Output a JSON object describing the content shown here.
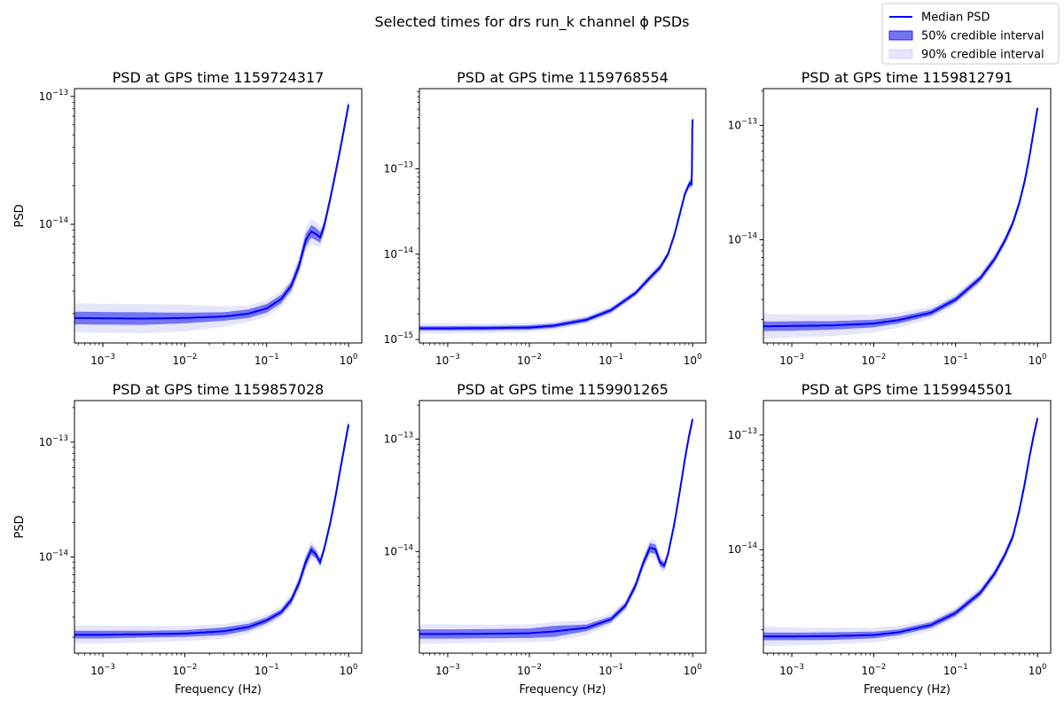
{
  "figure": {
    "suptitle": "Selected times for drs run_k channel ϕ PSDs",
    "legend": {
      "placement": "upper-right",
      "entries": [
        {
          "label": "Median PSD",
          "kind": "line",
          "color": "#0000ff"
        },
        {
          "label": "50% credible interval",
          "kind": "patch",
          "color": "#7575f3"
        },
        {
          "label": "90% credible interval",
          "kind": "patch",
          "color": "#e5e5fc"
        }
      ]
    },
    "colors": {
      "median": "#0000ff",
      "band50": "#7575f3",
      "band90": "#e5e5fc"
    }
  },
  "chart_data": [
    {
      "type": "line",
      "title": "PSD at GPS time 1159724317",
      "xlabel": "",
      "ylabel": "PSD",
      "xscale": "log",
      "yscale": "log",
      "xlim": [
        0.00045,
        1.45
      ],
      "ylim": [
        1.18e-15,
        1.15e-13
      ],
      "x_ticks": [
        {
          "v": 0.001,
          "e": "−3"
        },
        {
          "v": 0.01,
          "e": "−2"
        },
        {
          "v": 0.1,
          "e": "−1"
        },
        {
          "v": 1,
          "e": "0"
        }
      ],
      "y_ticks": [
        {
          "v": 1e-14,
          "e": "−14"
        },
        {
          "v": 1e-13,
          "e": "−13"
        }
      ],
      "x": [
        0.00045,
        0.001,
        0.003,
        0.01,
        0.03,
        0.06,
        0.1,
        0.15,
        0.2,
        0.25,
        0.3,
        0.35,
        0.4,
        0.45,
        0.5,
        0.6,
        0.7,
        0.8,
        0.9,
        1.0
      ],
      "median": [
        1.85e-15,
        1.84e-15,
        1.83e-15,
        1.85e-15,
        1.9e-15,
        2e-15,
        2.2e-15,
        2.6e-15,
        3.3e-15,
        4.8e-15,
        7.5e-15,
        8.8e-15,
        8.4e-15,
        7.9e-15,
        9.5e-15,
        1.6e-14,
        2.6e-14,
        4e-14,
        6e-14,
        8.6e-14
      ],
      "band50": [
        1.12,
        1.12,
        1.12,
        1.1,
        1.08,
        1.08,
        1.08,
        1.08,
        1.08,
        1.1,
        1.12,
        1.12,
        1.12,
        1.1,
        1.08,
        1.06,
        1.06,
        1.06,
        1.06,
        1.06
      ],
      "band90": [
        1.3,
        1.3,
        1.3,
        1.27,
        1.2,
        1.16,
        1.16,
        1.16,
        1.16,
        1.2,
        1.25,
        1.25,
        1.25,
        1.2,
        1.16,
        1.12,
        1.12,
        1.12,
        1.12,
        1.12
      ]
    },
    {
      "type": "line",
      "title": "PSD at GPS time 1159768554",
      "xlabel": "",
      "ylabel": "",
      "xscale": "log",
      "yscale": "log",
      "xlim": [
        0.00045,
        1.45
      ],
      "ylim": [
        9.1e-16,
        8.7e-13
      ],
      "x_ticks": [
        {
          "v": 0.001,
          "e": "−3"
        },
        {
          "v": 0.01,
          "e": "−2"
        },
        {
          "v": 0.1,
          "e": "−1"
        },
        {
          "v": 1,
          "e": "0"
        }
      ],
      "y_ticks": [
        {
          "v": 1e-15,
          "e": "−15"
        },
        {
          "v": 1e-14,
          "e": "−14"
        },
        {
          "v": 1e-13,
          "e": "−13"
        }
      ],
      "x": [
        0.00045,
        0.001,
        0.003,
        0.01,
        0.02,
        0.05,
        0.1,
        0.2,
        0.3,
        0.4,
        0.5,
        0.6,
        0.7,
        0.8,
        0.9,
        0.95,
        0.97,
        0.98,
        0.99,
        1.0
      ],
      "median": [
        1.35e-15,
        1.35e-15,
        1.36e-15,
        1.38e-15,
        1.45e-15,
        1.7e-15,
        2.2e-15,
        3.5e-15,
        5.3e-15,
        7e-15,
        1e-14,
        1.7e-14,
        3e-14,
        5e-14,
        6.5e-14,
        6.9e-14,
        6.6e-14,
        9e-14,
        2.8e-13,
        3.8e-13
      ],
      "band50": [
        1.06,
        1.06,
        1.06,
        1.06,
        1.06,
        1.06,
        1.06,
        1.06,
        1.07,
        1.07,
        1.06,
        1.06,
        1.06,
        1.06,
        1.08,
        1.1,
        1.1,
        1.12,
        1.15,
        1.15
      ],
      "band90": [
        1.15,
        1.15,
        1.14,
        1.13,
        1.12,
        1.12,
        1.12,
        1.12,
        1.14,
        1.14,
        1.12,
        1.12,
        1.12,
        1.12,
        1.15,
        1.2,
        1.2,
        1.25,
        1.35,
        1.35
      ]
    },
    {
      "type": "line",
      "title": "PSD at GPS time 1159812791",
      "xlabel": "",
      "ylabel": "",
      "xscale": "log",
      "yscale": "log",
      "xlim": [
        0.00045,
        1.45
      ],
      "ylim": [
        1.25e-15,
        2.1e-13
      ],
      "x_ticks": [
        {
          "v": 0.001,
          "e": "−3"
        },
        {
          "v": 0.01,
          "e": "−2"
        },
        {
          "v": 0.1,
          "e": "−1"
        },
        {
          "v": 1,
          "e": "0"
        }
      ],
      "y_ticks": [
        {
          "v": 1e-14,
          "e": "−14"
        },
        {
          "v": 1e-13,
          "e": "−13"
        }
      ],
      "x": [
        0.00045,
        0.001,
        0.003,
        0.01,
        0.02,
        0.05,
        0.1,
        0.2,
        0.3,
        0.4,
        0.5,
        0.6,
        0.7,
        0.8,
        0.9,
        1.0
      ],
      "median": [
        1.75e-15,
        1.76e-15,
        1.78e-15,
        1.85e-15,
        1.98e-15,
        2.3e-15,
        3e-15,
        4.6e-15,
        6.8e-15,
        9.8e-15,
        1.4e-14,
        2.1e-14,
        3.3e-14,
        5.4e-14,
        9e-14,
        1.42e-13
      ],
      "band50": [
        1.1,
        1.1,
        1.09,
        1.08,
        1.07,
        1.06,
        1.06,
        1.06,
        1.06,
        1.06,
        1.06,
        1.06,
        1.06,
        1.06,
        1.06,
        1.06
      ],
      "band90": [
        1.28,
        1.26,
        1.24,
        1.2,
        1.16,
        1.13,
        1.12,
        1.12,
        1.12,
        1.12,
        1.12,
        1.12,
        1.12,
        1.12,
        1.12,
        1.12
      ]
    },
    {
      "type": "line",
      "title": "PSD at GPS time 1159857028",
      "xlabel": "Frequency (Hz)",
      "ylabel": "PSD",
      "xscale": "log",
      "yscale": "log",
      "xlim": [
        0.00045,
        1.45
      ],
      "ylim": [
        1.45e-15,
        2.3e-13
      ],
      "x_ticks": [
        {
          "v": 0.001,
          "e": "−3"
        },
        {
          "v": 0.01,
          "e": "−2"
        },
        {
          "v": 0.1,
          "e": "−1"
        },
        {
          "v": 1,
          "e": "0"
        }
      ],
      "y_ticks": [
        {
          "v": 1e-14,
          "e": "−14"
        },
        {
          "v": 1e-13,
          "e": "−13"
        }
      ],
      "x": [
        0.00045,
        0.001,
        0.003,
        0.01,
        0.03,
        0.06,
        0.1,
        0.15,
        0.2,
        0.25,
        0.3,
        0.35,
        0.4,
        0.45,
        0.5,
        0.6,
        0.7,
        0.8,
        0.9,
        1.0
      ],
      "median": [
        2.1e-15,
        2.1e-15,
        2.12e-15,
        2.15e-15,
        2.25e-15,
        2.45e-15,
        2.8e-15,
        3.3e-15,
        4.2e-15,
        6e-15,
        9e-15,
        1.15e-14,
        1.05e-14,
        9e-15,
        1.15e-14,
        2e-14,
        3.5e-14,
        6e-14,
        9.5e-14,
        1.42e-13
      ],
      "band50": [
        1.08,
        1.08,
        1.07,
        1.07,
        1.08,
        1.07,
        1.06,
        1.06,
        1.07,
        1.08,
        1.1,
        1.1,
        1.08,
        1.07,
        1.06,
        1.06,
        1.06,
        1.06,
        1.07,
        1.07
      ],
      "band90": [
        1.2,
        1.2,
        1.18,
        1.16,
        1.16,
        1.14,
        1.13,
        1.13,
        1.14,
        1.16,
        1.2,
        1.2,
        1.16,
        1.14,
        1.12,
        1.12,
        1.12,
        1.12,
        1.14,
        1.14
      ]
    },
    {
      "type": "line",
      "title": "PSD at GPS time 1159901265",
      "xlabel": "Frequency (Hz)",
      "ylabel": "",
      "xscale": "log",
      "yscale": "log",
      "xlim": [
        0.00045,
        1.45
      ],
      "ylim": [
        1.25e-15,
        2.2e-13
      ],
      "x_ticks": [
        {
          "v": 0.001,
          "e": "−3"
        },
        {
          "v": 0.01,
          "e": "−2"
        },
        {
          "v": 0.1,
          "e": "−1"
        },
        {
          "v": 1,
          "e": "0"
        }
      ],
      "y_ticks": [
        {
          "v": 1e-14,
          "e": "−14"
        },
        {
          "v": 1e-13,
          "e": "−13"
        }
      ],
      "x": [
        0.00045,
        0.001,
        0.003,
        0.01,
        0.02,
        0.05,
        0.1,
        0.15,
        0.2,
        0.25,
        0.3,
        0.35,
        0.4,
        0.45,
        0.5,
        0.6,
        0.7,
        0.8,
        0.9,
        1.0
      ],
      "median": [
        1.85e-15,
        1.85e-15,
        1.86e-15,
        1.88e-15,
        1.95e-15,
        2.1e-15,
        2.5e-15,
        3.3e-15,
        5e-15,
        8e-15,
        1.08e-14,
        1.05e-14,
        8e-15,
        7.5e-15,
        9.5e-15,
        1.8e-14,
        3.5e-14,
        6.5e-14,
        1.05e-13,
        1.5e-13
      ],
      "band50": [
        1.1,
        1.1,
        1.1,
        1.1,
        1.12,
        1.07,
        1.06,
        1.06,
        1.07,
        1.08,
        1.1,
        1.1,
        1.08,
        1.07,
        1.06,
        1.06,
        1.06,
        1.06,
        1.07,
        1.07
      ],
      "band90": [
        1.22,
        1.22,
        1.2,
        1.2,
        1.22,
        1.16,
        1.12,
        1.12,
        1.14,
        1.16,
        1.2,
        1.2,
        1.16,
        1.14,
        1.12,
        1.12,
        1.12,
        1.12,
        1.14,
        1.14
      ]
    },
    {
      "type": "line",
      "title": "PSD at GPS time 1159945501",
      "xlabel": "Frequency (Hz)",
      "ylabel": "",
      "xscale": "log",
      "yscale": "log",
      "xlim": [
        0.00045,
        1.45
      ],
      "ylim": [
        1.25e-15,
        2e-13
      ],
      "x_ticks": [
        {
          "v": 0.001,
          "e": "−3"
        },
        {
          "v": 0.01,
          "e": "−2"
        },
        {
          "v": 0.1,
          "e": "−1"
        },
        {
          "v": 1,
          "e": "0"
        }
      ],
      "y_ticks": [
        {
          "v": 1e-14,
          "e": "−14"
        },
        {
          "v": 1e-13,
          "e": "−13"
        }
      ],
      "x": [
        0.00045,
        0.001,
        0.003,
        0.01,
        0.02,
        0.05,
        0.1,
        0.2,
        0.3,
        0.4,
        0.5,
        0.6,
        0.7,
        0.8,
        0.9,
        1.0
      ],
      "median": [
        1.75e-15,
        1.75e-15,
        1.76e-15,
        1.8e-15,
        1.9e-15,
        2.2e-15,
        2.8e-15,
        4.2e-15,
        6.2e-15,
        9e-15,
        1.3e-14,
        2.2e-14,
        3.8e-14,
        6.5e-14,
        1e-13,
        1.4e-13
      ],
      "band50": [
        1.08,
        1.08,
        1.08,
        1.07,
        1.06,
        1.06,
        1.06,
        1.06,
        1.06,
        1.06,
        1.06,
        1.06,
        1.06,
        1.06,
        1.06,
        1.06
      ],
      "band90": [
        1.22,
        1.2,
        1.18,
        1.16,
        1.14,
        1.12,
        1.12,
        1.12,
        1.12,
        1.12,
        1.12,
        1.12,
        1.12,
        1.12,
        1.12,
        1.12
      ]
    }
  ]
}
